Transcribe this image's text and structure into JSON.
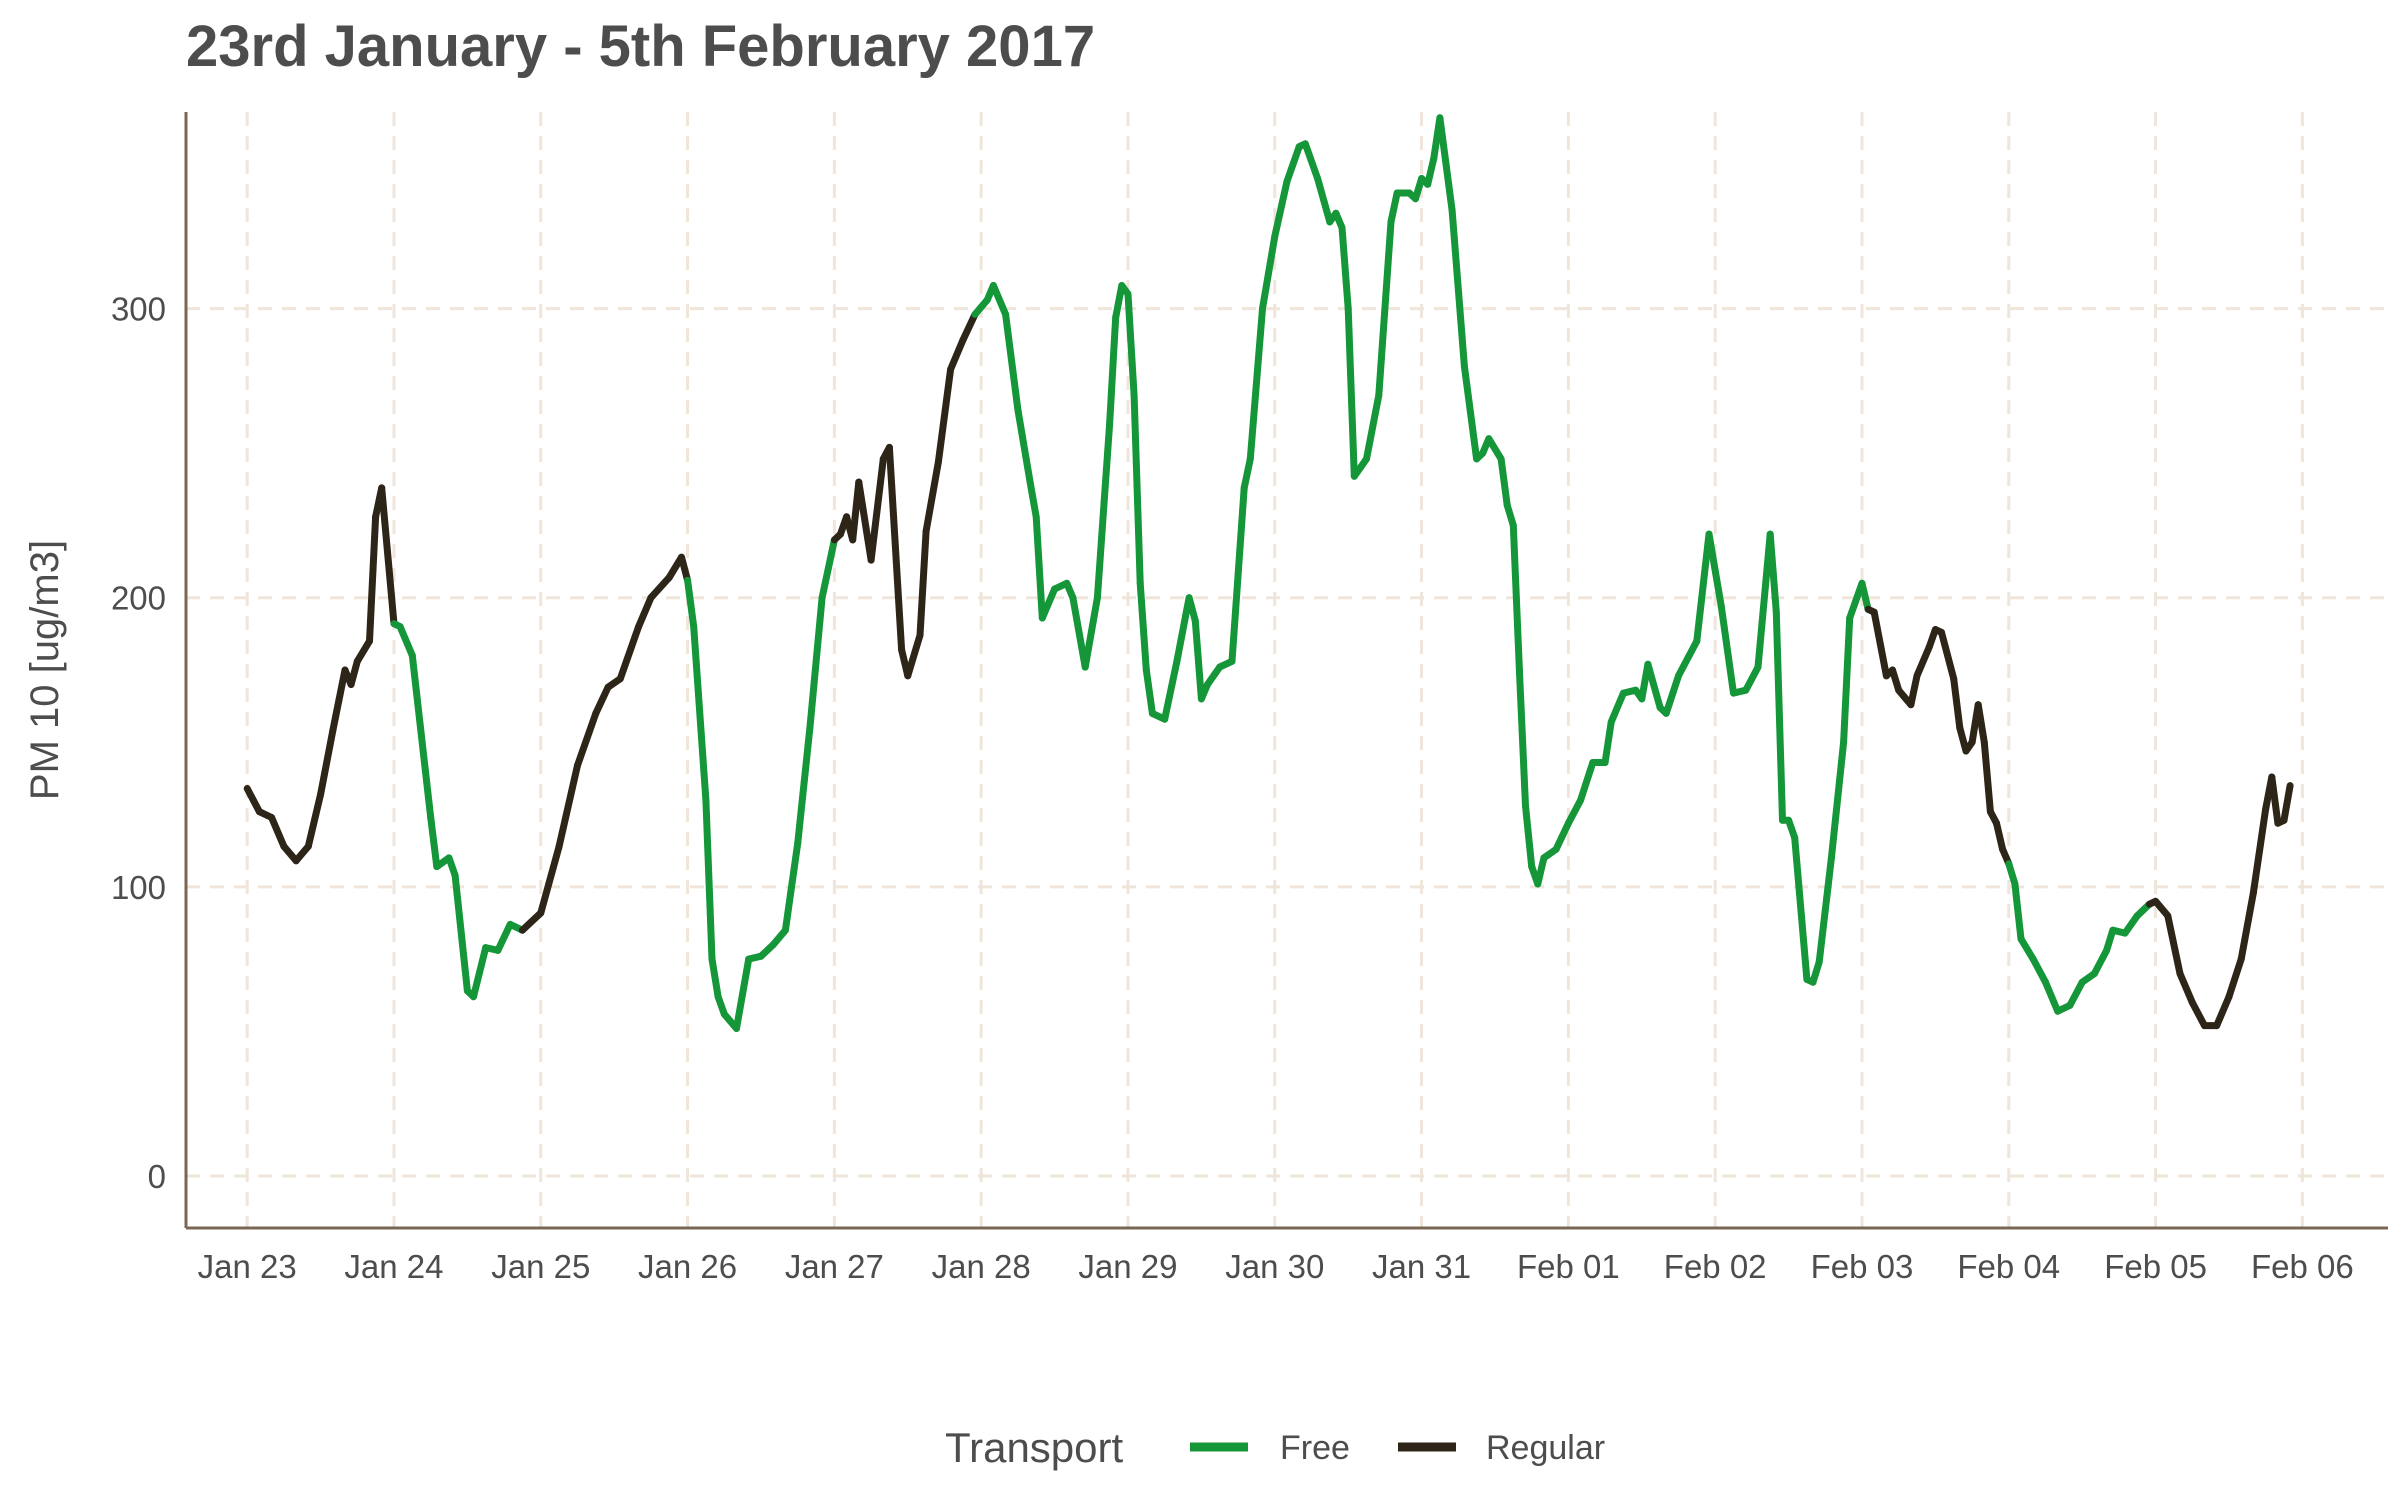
{
  "chart_data": {
    "type": "line",
    "title": "23rd January - 5th February 2017",
    "xlabel": "",
    "ylabel": "PM 10 [ug/m3]",
    "x_ticks": [
      "Jan 23",
      "Jan 24",
      "Jan 25",
      "Jan 26",
      "Jan 27",
      "Jan 28",
      "Jan 29",
      "Jan 30",
      "Jan 31",
      "Feb 01",
      "Feb 02",
      "Feb 03",
      "Feb 04",
      "Feb 05",
      "Feb 06"
    ],
    "y_ticks": [
      0,
      100,
      200,
      300
    ],
    "ylim": [
      -18,
      368
    ],
    "xlim": [
      "2017-01-22T14:00",
      "2017-02-06T14:00"
    ],
    "grid": true,
    "legend": {
      "title": "Transport",
      "position": "bottom"
    },
    "colors": {
      "Free": "#149639",
      "Regular": "#2e2519"
    },
    "series": [
      {
        "name": "Free",
        "color": "#149639"
      },
      {
        "name": "Regular",
        "color": "#2e2519"
      }
    ],
    "points": [
      [
        "2017-01-23T00:00",
        134,
        "Regular"
      ],
      [
        "2017-01-23T02:00",
        126,
        "Regular"
      ],
      [
        "2017-01-23T04:00",
        124,
        "Regular"
      ],
      [
        "2017-01-23T06:00",
        114,
        "Regular"
      ],
      [
        "2017-01-23T08:00",
        109,
        "Regular"
      ],
      [
        "2017-01-23T10:00",
        114,
        "Regular"
      ],
      [
        "2017-01-23T12:00",
        132,
        "Regular"
      ],
      [
        "2017-01-23T14:00",
        154,
        "Regular"
      ],
      [
        "2017-01-23T16:00",
        175,
        "Regular"
      ],
      [
        "2017-01-23T17:00",
        170,
        "Regular"
      ],
      [
        "2017-01-23T18:00",
        178,
        "Regular"
      ],
      [
        "2017-01-23T20:00",
        185,
        "Regular"
      ],
      [
        "2017-01-23T21:00",
        228,
        "Regular"
      ],
      [
        "2017-01-23T22:00",
        238,
        "Regular"
      ],
      [
        "2017-01-24T00:00",
        191,
        "Regular"
      ],
      [
        "2017-01-24T01:00",
        190,
        "Free"
      ],
      [
        "2017-01-24T03:00",
        180,
        "Free"
      ],
      [
        "2017-01-24T06:00",
        124,
        "Free"
      ],
      [
        "2017-01-24T07:00",
        107,
        "Free"
      ],
      [
        "2017-01-24T09:00",
        110,
        "Free"
      ],
      [
        "2017-01-24T10:00",
        104,
        "Free"
      ],
      [
        "2017-01-24T12:00",
        64,
        "Free"
      ],
      [
        "2017-01-24T13:00",
        62,
        "Free"
      ],
      [
        "2017-01-24T15:00",
        79,
        "Free"
      ],
      [
        "2017-01-24T17:00",
        78,
        "Free"
      ],
      [
        "2017-01-24T19:00",
        87,
        "Free"
      ],
      [
        "2017-01-24T21:00",
        85,
        "Free"
      ],
      [
        "2017-01-25T00:00",
        91,
        "Regular"
      ],
      [
        "2017-01-25T03:00",
        114,
        "Regular"
      ],
      [
        "2017-01-25T06:00",
        142,
        "Regular"
      ],
      [
        "2017-01-25T09:00",
        160,
        "Regular"
      ],
      [
        "2017-01-25T11:00",
        169,
        "Regular"
      ],
      [
        "2017-01-25T13:00",
        172,
        "Regular"
      ],
      [
        "2017-01-25T16:00",
        190,
        "Regular"
      ],
      [
        "2017-01-25T18:00",
        200,
        "Regular"
      ],
      [
        "2017-01-25T21:00",
        207,
        "Regular"
      ],
      [
        "2017-01-25T23:00",
        214,
        "Regular"
      ],
      [
        "2017-01-26T00:00",
        206,
        "Regular"
      ],
      [
        "2017-01-26T01:00",
        190,
        "Free"
      ],
      [
        "2017-01-26T03:00",
        130,
        "Free"
      ],
      [
        "2017-01-26T04:00",
        75,
        "Free"
      ],
      [
        "2017-01-26T05:00",
        62,
        "Free"
      ],
      [
        "2017-01-26T06:00",
        56,
        "Free"
      ],
      [
        "2017-01-26T08:00",
        51,
        "Free"
      ],
      [
        "2017-01-26T10:00",
        75,
        "Free"
      ],
      [
        "2017-01-26T12:00",
        76,
        "Free"
      ],
      [
        "2017-01-26T14:00",
        80,
        "Free"
      ],
      [
        "2017-01-26T16:00",
        85,
        "Free"
      ],
      [
        "2017-01-26T18:00",
        115,
        "Free"
      ],
      [
        "2017-01-26T20:00",
        155,
        "Free"
      ],
      [
        "2017-01-26T22:00",
        200,
        "Free"
      ],
      [
        "2017-01-27T00:00",
        220,
        "Free"
      ],
      [
        "2017-01-27T01:00",
        222,
        "Regular"
      ],
      [
        "2017-01-27T02:00",
        228,
        "Regular"
      ],
      [
        "2017-01-27T03:00",
        220,
        "Regular"
      ],
      [
        "2017-01-27T04:00",
        240,
        "Regular"
      ],
      [
        "2017-01-27T06:00",
        213,
        "Regular"
      ],
      [
        "2017-01-27T08:00",
        248,
        "Regular"
      ],
      [
        "2017-01-27T09:00",
        252,
        "Regular"
      ],
      [
        "2017-01-27T11:00",
        182,
        "Regular"
      ],
      [
        "2017-01-27T12:00",
        173,
        "Regular"
      ],
      [
        "2017-01-27T14:00",
        187,
        "Regular"
      ],
      [
        "2017-01-27T15:00",
        223,
        "Regular"
      ],
      [
        "2017-01-27T17:00",
        247,
        "Regular"
      ],
      [
        "2017-01-27T19:00",
        279,
        "Regular"
      ],
      [
        "2017-01-27T21:00",
        289,
        "Regular"
      ],
      [
        "2017-01-27T23:00",
        298,
        "Regular"
      ],
      [
        "2017-01-28T01:00",
        303,
        "Free"
      ],
      [
        "2017-01-28T02:00",
        308,
        "Free"
      ],
      [
        "2017-01-28T04:00",
        298,
        "Free"
      ],
      [
        "2017-01-28T06:00",
        265,
        "Free"
      ],
      [
        "2017-01-28T08:00",
        240,
        "Free"
      ],
      [
        "2017-01-28T09:00",
        228,
        "Free"
      ],
      [
        "2017-01-28T10:00",
        193,
        "Free"
      ],
      [
        "2017-01-28T12:00",
        203,
        "Free"
      ],
      [
        "2017-01-28T14:00",
        205,
        "Free"
      ],
      [
        "2017-01-28T15:00",
        200,
        "Free"
      ],
      [
        "2017-01-28T17:00",
        176,
        "Free"
      ],
      [
        "2017-01-28T19:00",
        200,
        "Free"
      ],
      [
        "2017-01-28T21:00",
        260,
        "Free"
      ],
      [
        "2017-01-28T22:00",
        297,
        "Free"
      ],
      [
        "2017-01-28T23:00",
        308,
        "Free"
      ],
      [
        "2017-01-29T00:00",
        305,
        "Free"
      ],
      [
        "2017-01-29T01:00",
        270,
        "Free"
      ],
      [
        "2017-01-29T02:00",
        205,
        "Free"
      ],
      [
        "2017-01-29T03:00",
        175,
        "Free"
      ],
      [
        "2017-01-29T04:00",
        160,
        "Free"
      ],
      [
        "2017-01-29T06:00",
        158,
        "Free"
      ],
      [
        "2017-01-29T08:00",
        178,
        "Free"
      ],
      [
        "2017-01-29T10:00",
        200,
        "Free"
      ],
      [
        "2017-01-29T11:00",
        192,
        "Free"
      ],
      [
        "2017-01-29T12:00",
        165,
        "Free"
      ],
      [
        "2017-01-29T13:00",
        170,
        "Free"
      ],
      [
        "2017-01-29T15:00",
        176,
        "Free"
      ],
      [
        "2017-01-29T17:00",
        178,
        "Free"
      ],
      [
        "2017-01-29T19:00",
        238,
        "Free"
      ],
      [
        "2017-01-29T20:00",
        248,
        "Free"
      ],
      [
        "2017-01-29T22:00",
        300,
        "Free"
      ],
      [
        "2017-01-30T00:00",
        325,
        "Free"
      ],
      [
        "2017-01-30T02:00",
        344,
        "Free"
      ],
      [
        "2017-01-30T04:00",
        356,
        "Free"
      ],
      [
        "2017-01-30T05:00",
        357,
        "Free"
      ],
      [
        "2017-01-30T07:00",
        345,
        "Free"
      ],
      [
        "2017-01-30T09:00",
        330,
        "Free"
      ],
      [
        "2017-01-30T10:00",
        333,
        "Free"
      ],
      [
        "2017-01-30T11:00",
        328,
        "Free"
      ],
      [
        "2017-01-30T12:00",
        300,
        "Free"
      ],
      [
        "2017-01-30T13:00",
        242,
        "Free"
      ],
      [
        "2017-01-30T14:00",
        245,
        "Free"
      ],
      [
        "2017-01-30T15:00",
        248,
        "Free"
      ],
      [
        "2017-01-30T17:00",
        270,
        "Free"
      ],
      [
        "2017-01-30T19:00",
        330,
        "Free"
      ],
      [
        "2017-01-30T20:00",
        340,
        "Free"
      ],
      [
        "2017-01-30T22:00",
        340,
        "Free"
      ],
      [
        "2017-01-30T23:00",
        338,
        "Free"
      ],
      [
        "2017-01-31T00:00",
        345,
        "Free"
      ],
      [
        "2017-01-31T01:00",
        343,
        "Free"
      ],
      [
        "2017-01-31T02:00",
        352,
        "Free"
      ],
      [
        "2017-01-31T03:00",
        366,
        "Free"
      ],
      [
        "2017-01-31T04:00",
        350,
        "Free"
      ],
      [
        "2017-01-31T05:00",
        334,
        "Free"
      ],
      [
        "2017-01-31T07:00",
        280,
        "Free"
      ],
      [
        "2017-01-31T09:00",
        248,
        "Free"
      ],
      [
        "2017-01-31T10:00",
        250,
        "Free"
      ],
      [
        "2017-01-31T11:00",
        255,
        "Free"
      ],
      [
        "2017-01-31T13:00",
        248,
        "Free"
      ],
      [
        "2017-01-31T14:00",
        232,
        "Free"
      ],
      [
        "2017-01-31T15:00",
        225,
        "Free"
      ],
      [
        "2017-01-31T16:00",
        175,
        "Free"
      ],
      [
        "2017-01-31T17:00",
        128,
        "Free"
      ],
      [
        "2017-01-31T18:00",
        107,
        "Free"
      ],
      [
        "2017-01-31T19:00",
        101,
        "Free"
      ],
      [
        "2017-01-31T20:00",
        110,
        "Free"
      ],
      [
        "2017-01-31T22:00",
        113,
        "Free"
      ],
      [
        "2017-02-01T00:00",
        122,
        "Free"
      ],
      [
        "2017-02-01T02:00",
        130,
        "Free"
      ],
      [
        "2017-02-01T04:00",
        143,
        "Free"
      ],
      [
        "2017-02-01T06:00",
        143,
        "Free"
      ],
      [
        "2017-02-01T07:00",
        157,
        "Free"
      ],
      [
        "2017-02-01T09:00",
        167,
        "Free"
      ],
      [
        "2017-02-01T11:00",
        168,
        "Free"
      ],
      [
        "2017-02-01T12:00",
        165,
        "Free"
      ],
      [
        "2017-02-01T13:00",
        177,
        "Free"
      ],
      [
        "2017-02-01T15:00",
        162,
        "Free"
      ],
      [
        "2017-02-01T16:00",
        160,
        "Free"
      ],
      [
        "2017-02-01T18:00",
        173,
        "Free"
      ],
      [
        "2017-02-01T21:00",
        185,
        "Free"
      ],
      [
        "2017-02-01T23:00",
        222,
        "Free"
      ],
      [
        "2017-02-02T01:00",
        197,
        "Free"
      ],
      [
        "2017-02-02T03:00",
        167,
        "Free"
      ],
      [
        "2017-02-02T05:00",
        168,
        "Free"
      ],
      [
        "2017-02-02T07:00",
        176,
        "Free"
      ],
      [
        "2017-02-02T09:00",
        222,
        "Free"
      ],
      [
        "2017-02-02T10:00",
        195,
        "Free"
      ],
      [
        "2017-02-02T11:00",
        123,
        "Free"
      ],
      [
        "2017-02-02T12:00",
        123,
        "Free"
      ],
      [
        "2017-02-02T13:00",
        117,
        "Free"
      ],
      [
        "2017-02-02T15:00",
        68,
        "Free"
      ],
      [
        "2017-02-02T16:00",
        67,
        "Free"
      ],
      [
        "2017-02-02T17:00",
        74,
        "Free"
      ],
      [
        "2017-02-02T19:00",
        110,
        "Free"
      ],
      [
        "2017-02-02T21:00",
        150,
        "Free"
      ],
      [
        "2017-02-02T22:00",
        193,
        "Free"
      ],
      [
        "2017-02-03T00:00",
        205,
        "Free"
      ],
      [
        "2017-02-03T01:00",
        196,
        "Free"
      ],
      [
        "2017-02-03T02:00",
        195,
        "Regular"
      ],
      [
        "2017-02-03T04:00",
        173,
        "Regular"
      ],
      [
        "2017-02-03T05:00",
        175,
        "Regular"
      ],
      [
        "2017-02-03T06:00",
        168,
        "Regular"
      ],
      [
        "2017-02-03T08:00",
        163,
        "Regular"
      ],
      [
        "2017-02-03T09:00",
        173,
        "Regular"
      ],
      [
        "2017-02-03T11:00",
        183,
        "Regular"
      ],
      [
        "2017-02-03T12:00",
        189,
        "Regular"
      ],
      [
        "2017-02-03T13:00",
        188,
        "Regular"
      ],
      [
        "2017-02-03T15:00",
        172,
        "Regular"
      ],
      [
        "2017-02-03T16:00",
        155,
        "Regular"
      ],
      [
        "2017-02-03T17:00",
        147,
        "Regular"
      ],
      [
        "2017-02-03T18:00",
        150,
        "Regular"
      ],
      [
        "2017-02-03T19:00",
        163,
        "Regular"
      ],
      [
        "2017-02-03T20:00",
        150,
        "Regular"
      ],
      [
        "2017-02-03T21:00",
        126,
        "Regular"
      ],
      [
        "2017-02-03T22:00",
        122,
        "Regular"
      ],
      [
        "2017-02-03T23:00",
        113,
        "Regular"
      ],
      [
        "2017-02-04T00:00",
        108,
        "Regular"
      ],
      [
        "2017-02-04T01:00",
        101,
        "Free"
      ],
      [
        "2017-02-04T02:00",
        82,
        "Free"
      ],
      [
        "2017-02-04T04:00",
        75,
        "Free"
      ],
      [
        "2017-02-04T06:00",
        67,
        "Free"
      ],
      [
        "2017-02-04T08:00",
        57,
        "Free"
      ],
      [
        "2017-02-04T10:00",
        59,
        "Free"
      ],
      [
        "2017-02-04T12:00",
        67,
        "Free"
      ],
      [
        "2017-02-04T14:00",
        70,
        "Free"
      ],
      [
        "2017-02-04T16:00",
        78,
        "Free"
      ],
      [
        "2017-02-04T17:00",
        85,
        "Free"
      ],
      [
        "2017-02-04T19:00",
        84,
        "Free"
      ],
      [
        "2017-02-04T21:00",
        90,
        "Free"
      ],
      [
        "2017-02-04T23:00",
        94,
        "Free"
      ],
      [
        "2017-02-05T00:00",
        95,
        "Regular"
      ],
      [
        "2017-02-05T02:00",
        90,
        "Regular"
      ],
      [
        "2017-02-05T04:00",
        70,
        "Regular"
      ],
      [
        "2017-02-05T06:00",
        60,
        "Regular"
      ],
      [
        "2017-02-05T08:00",
        52,
        "Regular"
      ],
      [
        "2017-02-05T10:00",
        52,
        "Regular"
      ],
      [
        "2017-02-05T12:00",
        62,
        "Regular"
      ],
      [
        "2017-02-05T14:00",
        75,
        "Regular"
      ],
      [
        "2017-02-05T16:00",
        98,
        "Regular"
      ],
      [
        "2017-02-05T18:00",
        127,
        "Regular"
      ],
      [
        "2017-02-05T19:00",
        138,
        "Regular"
      ],
      [
        "2017-02-05T20:00",
        122,
        "Regular"
      ],
      [
        "2017-02-05T21:00",
        123,
        "Regular"
      ],
      [
        "2017-02-05T22:00",
        135,
        "Regular"
      ]
    ]
  }
}
